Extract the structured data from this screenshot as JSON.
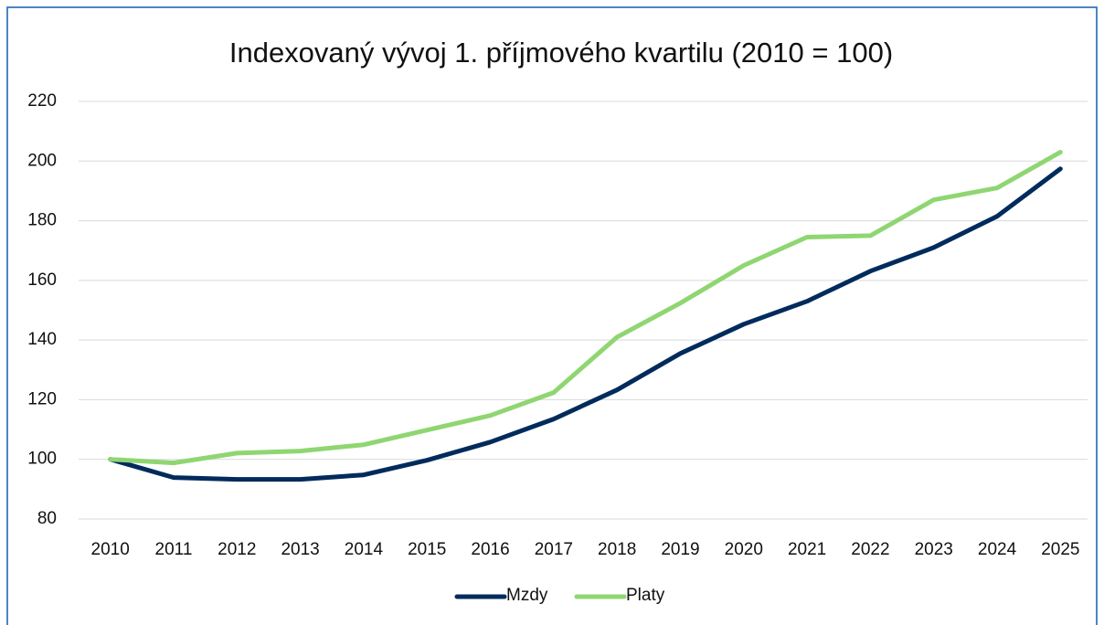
{
  "chart_data": {
    "type": "line",
    "title": "Indexovaný vývoj 1. příjmového kvartilu (2010 = 100)",
    "categories": [
      "2010",
      "2011",
      "2012",
      "2013",
      "2014",
      "2015",
      "2016",
      "2017",
      "2018",
      "2019",
      "2020",
      "2021",
      "2022",
      "2023",
      "2024",
      "2025"
    ],
    "series": [
      {
        "name": "Mzdy",
        "color": "#002b5c",
        "values": [
          100,
          93.9,
          93.3,
          93.3,
          94.8,
          99.7,
          105.8,
          113.5,
          123.3,
          135.5,
          145.3,
          153,
          163.1,
          171,
          181.5,
          197.4
        ]
      },
      {
        "name": "Platy",
        "color": "#8fd672",
        "values": [
          100,
          98.8,
          102.1,
          102.8,
          104.9,
          109.8,
          114.7,
          122.4,
          141,
          152.4,
          165,
          174.5,
          175,
          187,
          191,
          203
        ]
      }
    ],
    "ylim": [
      80,
      220
    ],
    "yticks": [
      80,
      100,
      120,
      140,
      160,
      180,
      200,
      220
    ],
    "grid": true,
    "legend": "bottom"
  }
}
